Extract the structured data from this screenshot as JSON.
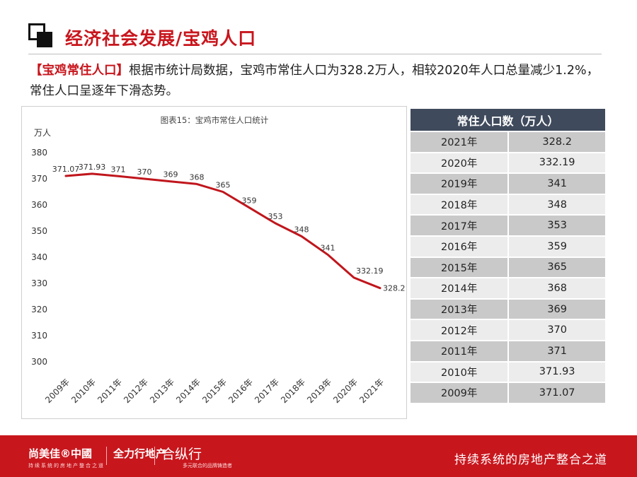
{
  "header": {
    "title": "经济社会发展/宝鸡人口"
  },
  "intro": {
    "highlight": "【宝鸡常住人口】",
    "text": "根据市统计局数据，宝鸡市常住人口为328.2万人，相较2020年人口总量减少1.2%，常住人口呈逐年下滑态势。"
  },
  "chart_data": {
    "type": "line",
    "title": "图表15：宝鸡市常住人口统计",
    "ylabel": "万人",
    "xlabel": "",
    "ylim": [
      300,
      380
    ],
    "yticks": [
      "300",
      "310",
      "320",
      "330",
      "340",
      "350",
      "360",
      "370",
      "380"
    ],
    "categories": [
      "2009年",
      "2010年",
      "2011年",
      "2012年",
      "2013年",
      "2014年",
      "2015年",
      "2016年",
      "2017年",
      "2018年",
      "2019年",
      "2020年",
      "2021年"
    ],
    "values": [
      371.07,
      371.93,
      371,
      370,
      369,
      368,
      365,
      359,
      353,
      348,
      341,
      332.19,
      328.2
    ],
    "value_labels": [
      "371.07",
      "371.93",
      "371",
      "370",
      "369",
      "368",
      "365",
      "359",
      "353",
      "348",
      "341",
      "332.19",
      "328.2"
    ],
    "grid": false,
    "legend": "none",
    "line_color": "#c0161c"
  },
  "table": {
    "header": "常住人口数（万人）",
    "rows": [
      {
        "year": "2021年",
        "value": "328.2"
      },
      {
        "year": "2020年",
        "value": "332.19"
      },
      {
        "year": "2019年",
        "value": "341"
      },
      {
        "year": "2018年",
        "value": "348"
      },
      {
        "year": "2017年",
        "value": "353"
      },
      {
        "year": "2016年",
        "value": "359"
      },
      {
        "year": "2015年",
        "value": "365"
      },
      {
        "year": "2014年",
        "value": "368"
      },
      {
        "year": "2013年",
        "value": "369"
      },
      {
        "year": "2012年",
        "value": "370"
      },
      {
        "year": "2011年",
        "value": "371"
      },
      {
        "year": "2010年",
        "value": "371.93"
      },
      {
        "year": "2009年",
        "value": "371.07"
      }
    ]
  },
  "footer": {
    "brand1": "尚美佳®中國",
    "brand1_sub": "持续系统的房地产整合之道",
    "brand2": "全力行地产",
    "brand3": "合纵行",
    "brand3_sub": "多元联合的品牌铸造者",
    "slogan": "持续系统的房地产整合之道"
  },
  "colors": {
    "accent": "#c8161d",
    "table_header": "#3f4a5c"
  }
}
